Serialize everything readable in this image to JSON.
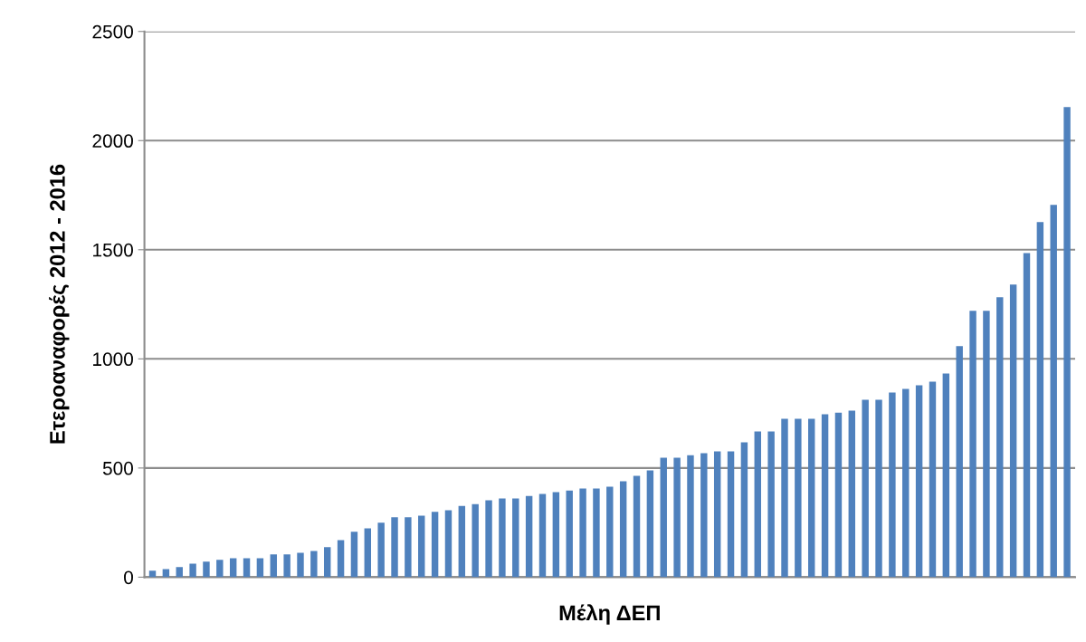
{
  "chart_data": {
    "type": "bar",
    "xlabel": "Μέλη ΔΕΠ",
    "ylabel": "Ετεροαναφορές 2012 - 2016",
    "categories": [
      null,
      null,
      null,
      null,
      null,
      null,
      null,
      null,
      null,
      null,
      null,
      null,
      null,
      null,
      null,
      null,
      null,
      null,
      null,
      null,
      null,
      null,
      null,
      null,
      null,
      null,
      null,
      null,
      null,
      null,
      null,
      null,
      null,
      null,
      null,
      null,
      null,
      null,
      null,
      null,
      null,
      null,
      null,
      null,
      null,
      null,
      null,
      null,
      null,
      null,
      null,
      null,
      null,
      null,
      null,
      null,
      null,
      null,
      null,
      null,
      null,
      null,
      null,
      null,
      null,
      null,
      null,
      null,
      null
    ],
    "values": [
      30,
      37,
      46,
      62,
      71,
      79,
      87,
      87,
      87,
      104,
      104,
      112,
      120,
      137,
      170,
      208,
      224,
      249,
      274,
      274,
      282,
      299,
      307,
      326,
      335,
      352,
      360,
      360,
      372,
      381,
      389,
      397,
      406,
      406,
      414,
      439,
      464,
      489,
      547,
      547,
      559,
      568,
      576,
      576,
      618,
      667,
      667,
      725,
      725,
      725,
      746,
      754,
      763,
      813,
      813,
      846,
      862,
      879,
      896,
      933,
      1058,
      1220,
      1220,
      1282,
      1340,
      1485,
      1627,
      1706,
      2154
    ],
    "color": "#4f81bd",
    "ylim": [
      0,
      2500
    ],
    "yticks": [
      0,
      500,
      1000,
      1500,
      2000,
      2500
    ],
    "grid": "y"
  }
}
